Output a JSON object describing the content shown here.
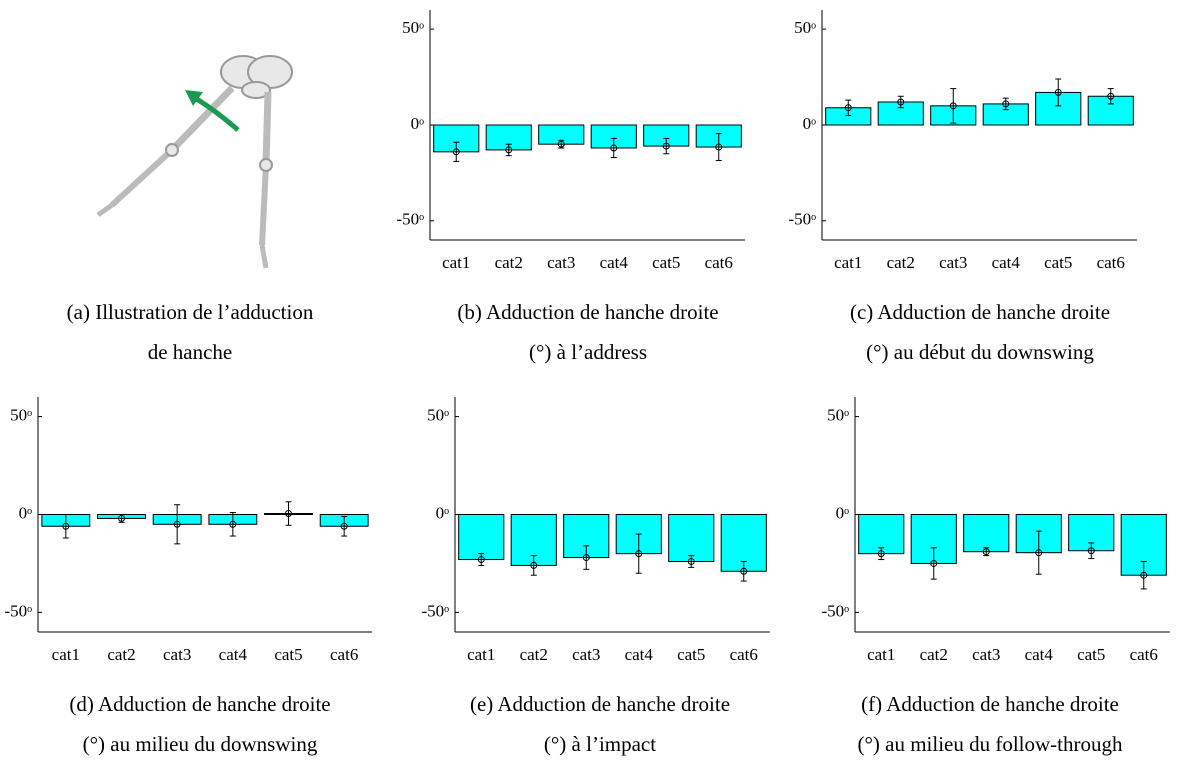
{
  "illustration": {
    "caption": [
      "(a) Illustration de l’adduction",
      "de hanche"
    ]
  },
  "chart_data": [
    {
      "type": "bar",
      "title": [
        "(b) Adduction de hanche droite",
        "(°) à l’address"
      ],
      "categories": [
        "cat1",
        "cat2",
        "cat3",
        "cat4",
        "cat5",
        "cat6"
      ],
      "series": [
        {
          "color": "#00ffff",
          "values": [
            -14,
            -13,
            -10,
            -12,
            -11,
            -11.5
          ],
          "errors": [
            5,
            3,
            2,
            5,
            4,
            7
          ]
        }
      ],
      "ylim": [
        -60,
        60
      ],
      "yticks": [
        {
          "value": -50,
          "label": "-50ᵒ"
        },
        {
          "value": 0,
          "label": "0ᵒ"
        },
        {
          "value": 50,
          "label": "50ᵒ"
        }
      ]
    },
    {
      "type": "bar",
      "title": [
        "(c) Adduction de hanche droite",
        "(°) au début du downswing"
      ],
      "categories": [
        "cat1",
        "cat2",
        "cat3",
        "cat4",
        "cat5",
        "cat6"
      ],
      "series": [
        {
          "color": "#00ffff",
          "values": [
            9,
            12,
            10,
            11,
            17,
            15
          ],
          "errors": [
            4,
            3,
            9,
            3,
            7,
            4
          ]
        }
      ],
      "ylim": [
        -60,
        60
      ],
      "yticks": [
        {
          "value": -50,
          "label": "-50ᵒ"
        },
        {
          "value": 0,
          "label": "0ᵒ"
        },
        {
          "value": 50,
          "label": "50ᵒ"
        }
      ]
    },
    {
      "type": "bar",
      "title": [
        "(d) Adduction de hanche droite",
        "(°) au milieu du downswing"
      ],
      "categories": [
        "cat1",
        "cat2",
        "cat3",
        "cat4",
        "cat5",
        "cat6"
      ],
      "series": [
        {
          "color": "#00ffff",
          "values": [
            -6,
            -2,
            -5,
            -5,
            0.5,
            -6
          ],
          "errors": [
            6,
            2,
            10,
            6,
            6,
            5
          ]
        }
      ],
      "ylim": [
        -60,
        60
      ],
      "yticks": [
        {
          "value": -50,
          "label": "-50ᵒ"
        },
        {
          "value": 0,
          "label": "0ᵒ"
        },
        {
          "value": 50,
          "label": "50ᵒ"
        }
      ]
    },
    {
      "type": "bar",
      "title": [
        "(e) Adduction de hanche droite",
        "(°) à l’impact"
      ],
      "categories": [
        "cat1",
        "cat2",
        "cat3",
        "cat4",
        "cat5",
        "cat6"
      ],
      "series": [
        {
          "color": "#00ffff",
          "values": [
            -23,
            -26,
            -22,
            -20,
            -24,
            -29
          ],
          "errors": [
            3,
            5,
            6,
            10,
            3,
            5
          ]
        }
      ],
      "ylim": [
        -60,
        60
      ],
      "yticks": [
        {
          "value": -50,
          "label": "-50ᵒ"
        },
        {
          "value": 0,
          "label": "0ᵒ"
        },
        {
          "value": 50,
          "label": "50ᵒ"
        }
      ]
    },
    {
      "type": "bar",
      "title": [
        "(f) Adduction de hanche droite",
        "(°) au milieu du follow-through"
      ],
      "categories": [
        "cat1",
        "cat2",
        "cat3",
        "cat4",
        "cat5",
        "cat6"
      ],
      "series": [
        {
          "color": "#00ffff",
          "values": [
            -20,
            -25,
            -19,
            -19.5,
            -18.5,
            -31
          ],
          "errors": [
            3,
            8,
            2,
            11,
            4,
            7
          ]
        }
      ],
      "ylim": [
        -60,
        60
      ],
      "yticks": [
        {
          "value": -50,
          "label": "-50ᵒ"
        },
        {
          "value": 0,
          "label": "0ᵒ"
        },
        {
          "value": 50,
          "label": "50ᵒ"
        }
      ]
    }
  ]
}
